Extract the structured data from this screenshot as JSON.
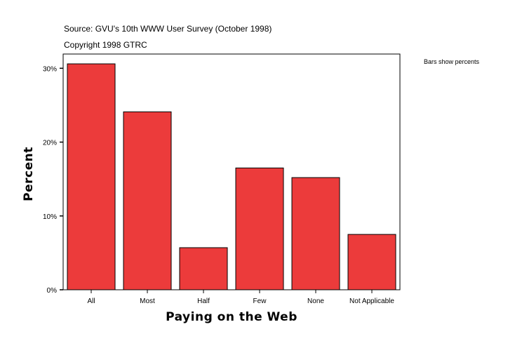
{
  "header": {
    "source": "Source: GVU's 10th WWW User Survey (October 1998)",
    "copyright": "Copyright 1998 GTRC"
  },
  "note": "Bars show percents",
  "chart_data": {
    "type": "bar",
    "categories": [
      "All",
      "Most",
      "Half",
      "Few",
      "None",
      "Not Applicable"
    ],
    "values": [
      30.6,
      24.1,
      5.7,
      16.5,
      15.2,
      7.5
    ],
    "xlabel": "Paying on the Web",
    "ylabel": "Percent",
    "ylim": [
      0,
      30.6
    ],
    "yticks": [
      0,
      10,
      20,
      30
    ],
    "ytick_labels": [
      "0%",
      "10%",
      "20%",
      "30%"
    ],
    "bar_color": "#ec3b3b",
    "grid": false,
    "legend": "none"
  }
}
